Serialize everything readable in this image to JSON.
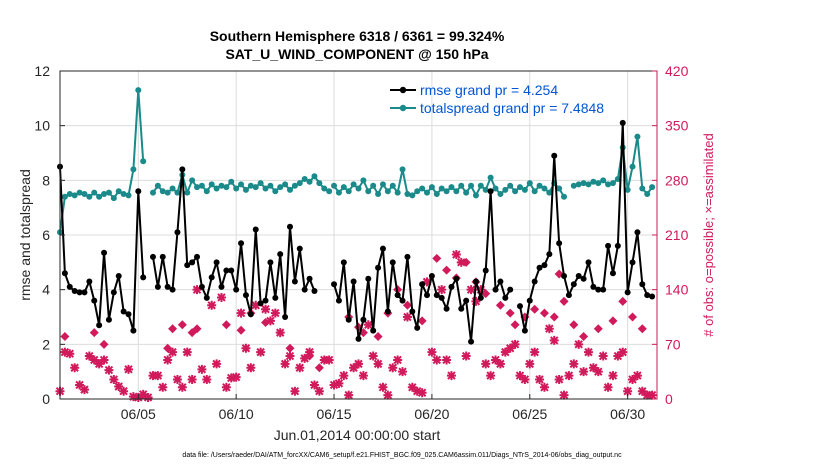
{
  "chart_data": {
    "type": "line",
    "title": "Southern Hemisphere 6318 / 6361 = 99.324%",
    "subtitle": "SAT_U_WIND_COMPONENT @ 150 hPa",
    "xlabel": "Jun.01,2014 00:00:00 start",
    "ylabel": "rmse and totalspread",
    "y2label": "# of obs: o=possible; ×=assimilated",
    "footnote": "data file: /Users/raeder/DAI/ATM_forcXX/CAM6_setup/f.e21.FHIST_BGC.f09_025.CAM6assim.011/Diags_NTrS_2014-06/obs_diag_output.nc",
    "x_tick_labels": [
      "06/05",
      "06/10",
      "06/15",
      "06/20",
      "06/25",
      "06/30"
    ],
    "x_tick_days": [
      5,
      10,
      15,
      20,
      25,
      30
    ],
    "xlim": [
      1,
      31.5
    ],
    "ylim": [
      0,
      12
    ],
    "y_ticks": [
      0,
      2,
      4,
      6,
      8,
      10,
      12
    ],
    "y2lim": [
      0,
      420
    ],
    "y2_ticks": [
      0,
      70,
      140,
      210,
      280,
      350,
      420
    ],
    "grid": true,
    "legend_position": "top-right",
    "series": [
      {
        "name": "rmse grand pr = 4.254",
        "color": "#000000",
        "marker": "circle",
        "segments": [
          [
            1.0,
            8.5,
            1.25,
            4.6,
            1.5,
            4.1,
            1.75,
            3.95,
            2.0,
            3.9,
            2.25,
            3.9,
            2.5,
            4.3,
            2.75,
            3.6,
            3.0,
            2.7,
            3.25,
            5.35,
            3.5,
            2.9,
            3.75,
            3.9,
            4.0,
            4.5,
            4.25,
            3.2,
            4.5,
            3.1,
            4.75,
            2.5,
            5.0,
            7.6,
            5.25,
            4.45
          ],
          [
            5.75,
            5.2,
            6.0,
            4.1,
            6.25,
            5.2,
            6.5,
            4.1,
            6.75,
            4.0,
            7.0,
            6.1,
            7.25,
            8.4,
            7.5,
            4.9,
            7.75,
            5.0,
            8.0,
            5.2,
            8.25,
            4.1,
            8.5,
            3.7,
            8.75,
            4.45,
            9.0,
            5.0,
            9.25,
            4.1,
            9.5,
            4.7,
            9.75,
            4.7,
            10.0,
            4.0,
            10.25,
            5.7,
            10.5,
            3.8,
            10.75,
            3.1,
            11.0,
            6.2,
            11.25,
            3.5,
            11.5,
            3.6,
            11.75,
            5.0,
            12.0,
            3.7,
            12.25,
            5.3,
            12.5,
            3.0,
            12.75,
            6.3,
            13.0,
            4.3,
            13.25,
            5.5,
            13.5,
            4.0,
            13.75,
            4.4,
            14.0,
            3.95
          ],
          [
            15.0,
            4.2,
            15.25,
            3.6,
            15.5,
            5.0,
            15.75,
            2.9,
            16.0,
            4.3,
            16.25,
            2.2,
            16.5,
            2.9,
            16.75,
            4.4,
            17.0,
            2.5,
            17.25,
            4.8,
            17.5,
            5.5,
            17.75,
            3.2,
            18.0,
            5.0,
            18.25,
            3.8,
            18.5,
            3.6,
            18.75,
            5.2,
            19.0,
            3.2,
            19.25,
            2.6,
            19.5,
            4.2,
            19.75,
            3.8,
            20.0,
            4.5,
            20.25,
            3.8,
            20.5,
            3.7,
            20.75,
            3.3,
            21.0,
            4.1,
            21.25,
            4.4,
            21.5,
            3.3,
            21.75,
            3.6,
            22.0,
            2.1,
            22.25,
            4.3,
            22.5,
            3.7,
            22.75,
            4.7,
            23.0,
            7.6,
            23.25,
            4.0,
            23.5,
            4.3,
            23.75,
            3.7,
            24.0,
            4.0
          ],
          [
            24.5,
            3.4,
            24.75,
            2.5,
            25.0,
            3.6,
            25.25,
            4.3,
            25.5,
            4.8,
            25.75,
            4.9,
            26.0,
            5.3,
            26.25,
            8.9,
            26.5,
            5.7,
            26.75,
            4.5,
            27.0,
            3.8,
            27.25,
            4.2,
            27.5,
            4.5,
            27.75,
            4.4,
            28.0,
            5.0,
            28.25,
            4.1,
            28.5,
            4.0,
            28.75,
            4.0,
            29.0,
            5.6,
            29.25,
            4.6,
            29.5,
            5.6,
            29.75,
            10.1,
            30.0,
            3.9,
            30.25,
            5.0,
            30.5,
            6.1,
            30.75,
            4.2,
            31.0,
            3.8,
            31.25,
            3.75
          ]
        ]
      },
      {
        "name": "totalspread grand pr = 7.4848",
        "color": "#1a8a8a",
        "marker": "circle",
        "segments": [
          [
            1.0,
            6.1,
            1.25,
            7.4,
            1.5,
            7.5,
            1.75,
            7.45,
            2.0,
            7.55,
            2.25,
            7.5,
            2.5,
            7.4,
            2.75,
            7.55,
            3.0,
            7.4,
            3.25,
            7.5,
            3.5,
            7.55,
            3.75,
            7.35,
            4.0,
            7.6,
            4.25,
            7.5,
            4.5,
            7.45,
            4.75,
            8.4,
            5.0,
            11.3,
            5.25,
            8.7
          ],
          [
            5.75,
            7.55,
            6.0,
            7.8,
            6.25,
            7.6,
            6.5,
            7.55,
            6.75,
            7.7,
            7.0,
            7.55,
            7.25,
            8.2,
            7.5,
            7.55,
            7.75,
            8.0,
            8.0,
            7.75,
            8.25,
            7.8,
            8.5,
            7.6,
            8.75,
            7.85,
            9.0,
            7.7,
            9.25,
            7.8,
            9.5,
            7.75,
            9.75,
            7.95,
            10.0,
            7.7,
            10.25,
            7.85,
            10.5,
            7.65,
            10.75,
            7.8,
            11.0,
            7.75,
            11.25,
            7.9,
            11.5,
            7.7,
            11.75,
            7.8,
            12.0,
            7.6,
            12.25,
            7.75,
            12.5,
            7.85,
            12.75,
            7.65,
            13.0,
            7.8,
            13.25,
            7.9,
            13.5,
            8.05,
            13.75,
            7.95,
            14.0,
            8.15,
            14.25,
            7.9,
            14.5,
            7.7,
            14.75,
            7.6
          ],
          [
            15.0,
            7.8,
            15.25,
            7.55,
            15.5,
            7.75,
            15.75,
            7.6,
            16.0,
            7.85,
            16.25,
            7.7,
            16.5,
            8.0,
            16.75,
            7.6,
            17.0,
            7.8,
            17.25,
            7.5,
            17.5,
            7.85,
            17.75,
            7.6,
            18.0,
            7.8,
            18.25,
            7.55,
            18.5,
            8.4,
            18.75,
            7.5,
            19.0,
            7.45,
            19.25,
            7.6,
            19.5,
            7.7,
            19.75,
            7.55,
            20.0,
            7.75,
            20.25,
            7.5,
            20.5,
            7.7,
            20.75,
            7.6,
            21.0,
            7.75,
            21.25,
            7.6,
            21.5,
            7.8,
            21.75,
            7.55,
            22.0,
            7.8,
            22.25,
            7.45,
            22.5,
            7.8,
            22.75,
            7.65,
            23.0,
            8.1,
            23.25,
            7.7,
            23.5,
            7.5,
            23.75,
            7.65,
            24.0,
            7.8,
            24.25,
            7.6,
            24.5,
            7.75,
            24.75,
            7.65,
            25.0,
            7.9,
            25.25,
            7.6,
            25.5,
            7.8,
            25.75,
            7.7,
            26.0,
            7.55,
            26.25,
            7.9,
            26.5,
            7.7,
            26.75,
            7.4
          ],
          [
            27.25,
            7.8,
            27.5,
            7.85,
            27.75,
            7.9,
            28.0,
            7.85,
            28.25,
            7.95,
            28.5,
            7.9,
            28.75,
            8.0,
            29.0,
            7.85,
            29.25,
            7.9,
            29.5,
            8.05,
            29.75,
            9.2,
            30.0,
            7.65,
            30.25,
            8.5,
            30.5,
            9.6,
            30.75,
            7.7,
            31.0,
            7.5,
            31.25,
            7.75
          ]
        ]
      },
      {
        "name": "# of obs assimilated",
        "color": "#d11a5b",
        "marker": "x",
        "axis": "right",
        "points": [
          1.0,
          10,
          1.25,
          60,
          1.5,
          58,
          1.75,
          40,
          2.0,
          18,
          2.25,
          12,
          2.5,
          55,
          2.75,
          50,
          3.0,
          45,
          3.25,
          50,
          3.5,
          37,
          3.75,
          25,
          4.0,
          16,
          4.25,
          10,
          4.5,
          38,
          4.75,
          3,
          5.0,
          2,
          5.25,
          6,
          5.5,
          2,
          5.75,
          30,
          6.0,
          30,
          6.25,
          15,
          6.5,
          50,
          6.75,
          60,
          7.0,
          25,
          7.25,
          15,
          7.5,
          60,
          7.75,
          25,
          8.0,
          140,
          8.25,
          38,
          8.5,
          25,
          8.75,
          120,
          9.0,
          45,
          9.25,
          130,
          9.5,
          15,
          9.75,
          27,
          10.0,
          28,
          10.25,
          110,
          10.5,
          65,
          10.75,
          40,
          11.0,
          120,
          11.25,
          60,
          11.5,
          115,
          11.75,
          100,
          12.0,
          110,
          12.25,
          85,
          12.5,
          45,
          12.75,
          55,
          13.0,
          10,
          13.25,
          40,
          13.5,
          52,
          13.75,
          60,
          14.0,
          18,
          14.25,
          10,
          14.5,
          50,
          14.75,
          50,
          15.0,
          18,
          15.25,
          20,
          15.5,
          30,
          15.75,
          5,
          16.0,
          40,
          16.25,
          45,
          16.5,
          30,
          16.75,
          95,
          17.0,
          55,
          17.25,
          45,
          17.5,
          15,
          17.75,
          5,
          18.0,
          40,
          18.25,
          50,
          18.5,
          35,
          18.75,
          105,
          19.0,
          15,
          19.25,
          10,
          19.5,
          8,
          19.75,
          150,
          20.0,
          60,
          20.25,
          50,
          20.5,
          140,
          20.75,
          50,
          21.0,
          30,
          21.25,
          185,
          21.5,
          175,
          21.75,
          55,
          22.0,
          140,
          22.25,
          125,
          22.5,
          140,
          22.75,
          45,
          23.0,
          30,
          23.25,
          50,
          23.5,
          45,
          23.75,
          60,
          24.0,
          65,
          24.25,
          70,
          24.5,
          30,
          24.75,
          25,
          25.0,
          45,
          25.25,
          60,
          25.5,
          25,
          25.75,
          15,
          26.0,
          90,
          26.25,
          75,
          26.5,
          25,
          26.75,
          5,
          27.0,
          30,
          27.25,
          45,
          27.5,
          70,
          27.75,
          35,
          28.0,
          60,
          28.25,
          40,
          28.5,
          35,
          28.75,
          55,
          29.0,
          15,
          29.25,
          30,
          29.5,
          55,
          29.75,
          60,
          30.0,
          10,
          30.25,
          25,
          30.5,
          30,
          30.75,
          10,
          31.0,
          5,
          31.25,
          5
        ]
      },
      {
        "name": "# of obs possible",
        "color": "#d11a5b",
        "marker": "diamond",
        "axis": "right",
        "points": [
          1.25,
          80,
          2.75,
          85,
          3.25,
          70,
          6.5,
          65,
          6.75,
          90,
          7.25,
          95,
          7.75,
          85,
          8.0,
          90,
          9.5,
          95,
          10.25,
          88,
          10.75,
          110,
          11.5,
          98,
          12.75,
          65,
          13.75,
          55,
          14.25,
          40,
          15.75,
          105,
          16.25,
          92,
          16.5,
          85,
          17.25,
          80,
          17.75,
          110,
          18.25,
          140,
          18.75,
          120,
          19.5,
          100,
          20.25,
          180,
          20.75,
          165,
          21.25,
          155,
          21.75,
          175,
          22.25,
          150,
          22.75,
          135,
          23.5,
          120,
          24.0,
          110,
          24.25,
          95,
          24.75,
          105,
          25.25,
          115,
          25.75,
          110,
          26.25,
          105,
          26.5,
          160,
          26.75,
          125,
          27.25,
          95,
          27.75,
          80,
          28.5,
          90,
          29.25,
          100,
          29.75,
          125,
          30.25,
          105,
          30.75,
          90
        ]
      }
    ]
  }
}
